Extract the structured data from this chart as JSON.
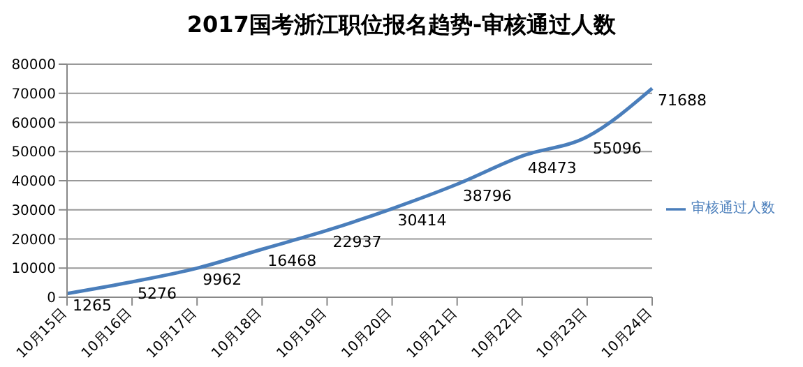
{
  "chart_data": {
    "type": "line",
    "title": "2017国考浙江职位报名趋势-审核通过人数",
    "categories": [
      "10月15日",
      "10月16日",
      "10月17日",
      "10月18日",
      "10月19日",
      "10月20日",
      "10月21日",
      "10月22日",
      "10月23日",
      "10月24日"
    ],
    "series": [
      {
        "name": "审核通过人数",
        "color": "#4a7ebb",
        "values": [
          1265,
          5276,
          9962,
          16468,
          22937,
          30414,
          38796,
          48473,
          55096,
          71688
        ]
      }
    ],
    "ylim": [
      0,
      80000
    ],
    "yticks": [
      0,
      10000,
      20000,
      30000,
      40000,
      50000,
      60000,
      70000,
      80000
    ],
    "grid": "y",
    "legend": "right",
    "marker": "none",
    "line_style": "solid",
    "data_labels": true
  }
}
